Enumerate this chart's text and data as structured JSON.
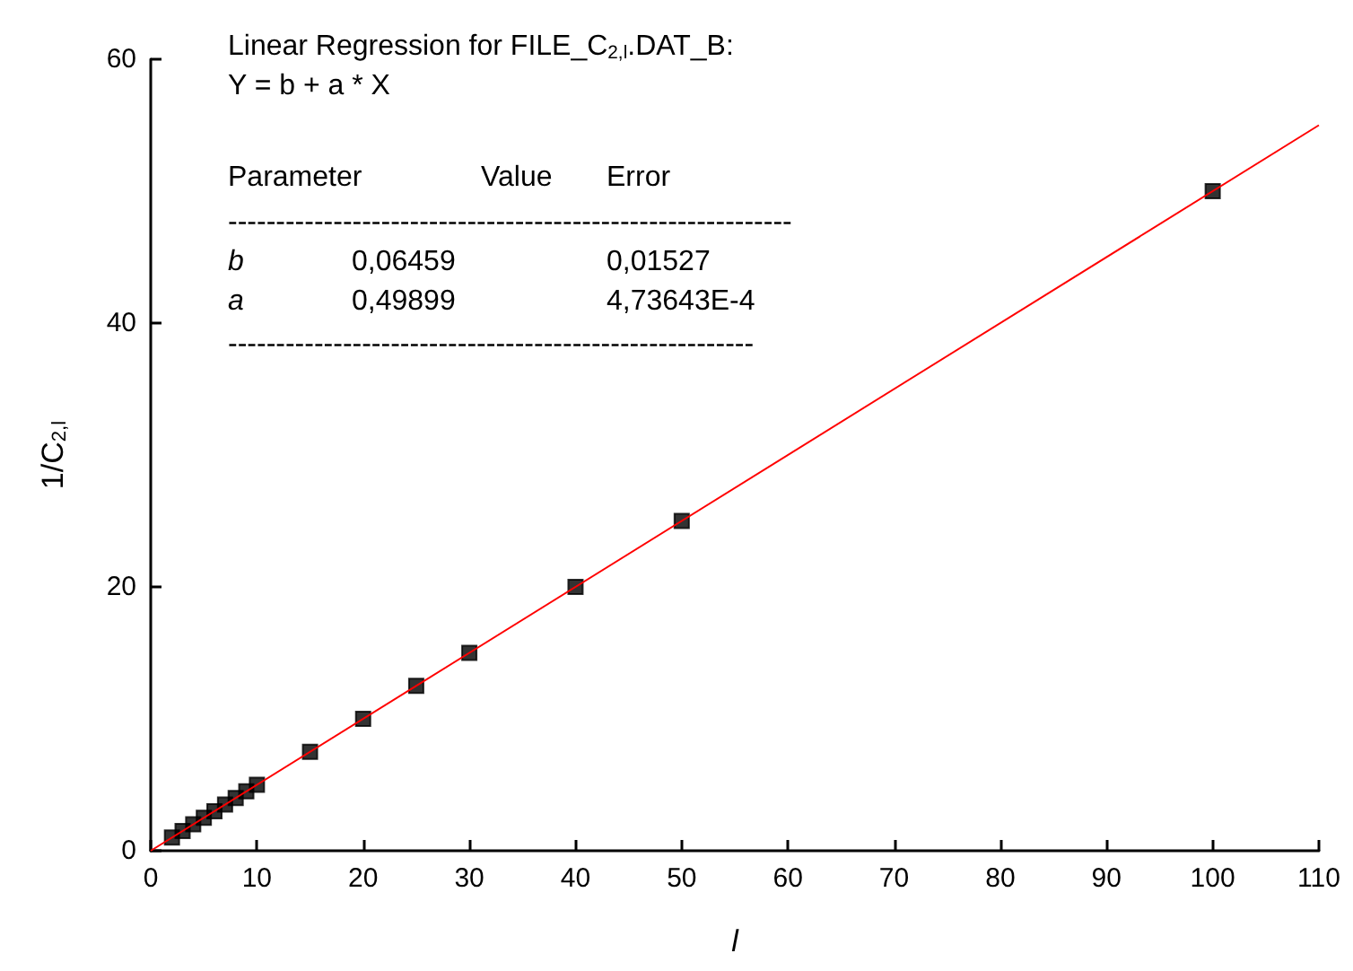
{
  "chart_data": {
    "type": "scatter",
    "xlabel": "l",
    "ylabel": "1/C$_{2,l}$",
    "xlim": [
      0,
      110
    ],
    "xticks": [
      0,
      10,
      20,
      30,
      40,
      50,
      60,
      70,
      80,
      90,
      100,
      110
    ],
    "ylim": [
      0,
      60
    ],
    "yticks": [
      0,
      20,
      40,
      60
    ],
    "grid": false,
    "marker": "square",
    "series": [
      {
        "color": "#000000",
        "x": [
          2,
          3,
          4,
          5,
          6,
          7,
          8,
          9,
          10,
          15,
          20,
          25,
          30,
          40,
          50,
          100
        ],
        "values": [
          1,
          1.5,
          2,
          2.5,
          3,
          3.5,
          4,
          4.5,
          5,
          7.5,
          10,
          12.5,
          15,
          20,
          25,
          50
        ]
      },
      {
        "type": "line",
        "color": "#ff0000",
        "marker": "none",
        "x": [
          0,
          110
        ],
        "values": [
          0,
          55
        ]
      }
    ],
    "annotations": [
      "Linear Regression for FILE_C$_{2,l}$.DAT_B:",
      "Y = b + a * X",
      "Parameter",
      "Value",
      "Error",
      "-----------------------------------------------------------",
      "b",
      "0,06459",
      "0,01527",
      "a",
      "0,49899",
      "4,73643E-4",
      "-------------------------------------------------------"
    ]
  }
}
